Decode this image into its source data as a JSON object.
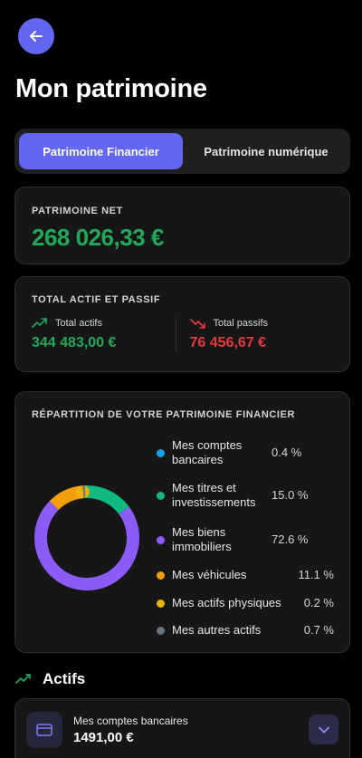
{
  "header": {
    "back_icon": "arrow-left-icon",
    "title": "Mon patrimoine"
  },
  "tabs": [
    {
      "label": "Patrimoine Financier",
      "active": true
    },
    {
      "label": "Patrimoine numérique",
      "active": false
    }
  ],
  "net": {
    "label": "PATRIMOINE NET",
    "value": "268 026,33 €"
  },
  "totals": {
    "label": "TOTAL ACTIF ET PASSIF",
    "assets": {
      "label": "Total actifs",
      "value": "344 483,00 €",
      "icon": "trending-up-icon"
    },
    "liabilities": {
      "label": "Total passifs",
      "value": "76 456,67 €",
      "icon": "trending-down-icon"
    }
  },
  "breakdown": {
    "label": "RÉPARTITION DE VOTRE PATRIMOINE FINANCIER",
    "items": [
      {
        "label": "Mes comptes bancaires",
        "pct": "0.4 %",
        "value": 0.4,
        "color": "#0ea5e9"
      },
      {
        "label": "Mes titres et investissements",
        "pct": "15.0 %",
        "value": 15.0,
        "color": "#10b981"
      },
      {
        "label": "Mes biens immobiliers",
        "pct": "72.6 %",
        "value": 72.6,
        "color": "#8b5cf6"
      },
      {
        "label": "Mes véhicules",
        "pct": "11.1 %",
        "value": 11.1,
        "color": "#f59e0b"
      },
      {
        "label": "Mes actifs physiques",
        "pct": "0.2 %",
        "value": 0.2,
        "color": "#eab308"
      },
      {
        "label": "Mes autres actifs",
        "pct": "0.7 %",
        "value": 0.7,
        "color": "#6b7280"
      }
    ]
  },
  "assets_section": {
    "title": "Actifs",
    "icon": "trending-up-icon"
  },
  "asset_item": {
    "label": "Mes comptes bancaires",
    "value": "1491,00 €",
    "icon": "credit-card-icon",
    "action_icon": "chevron-down-icon"
  },
  "colors": {
    "accent": "#6366f1",
    "positive": "#22a85a",
    "negative": "#e5393b"
  }
}
